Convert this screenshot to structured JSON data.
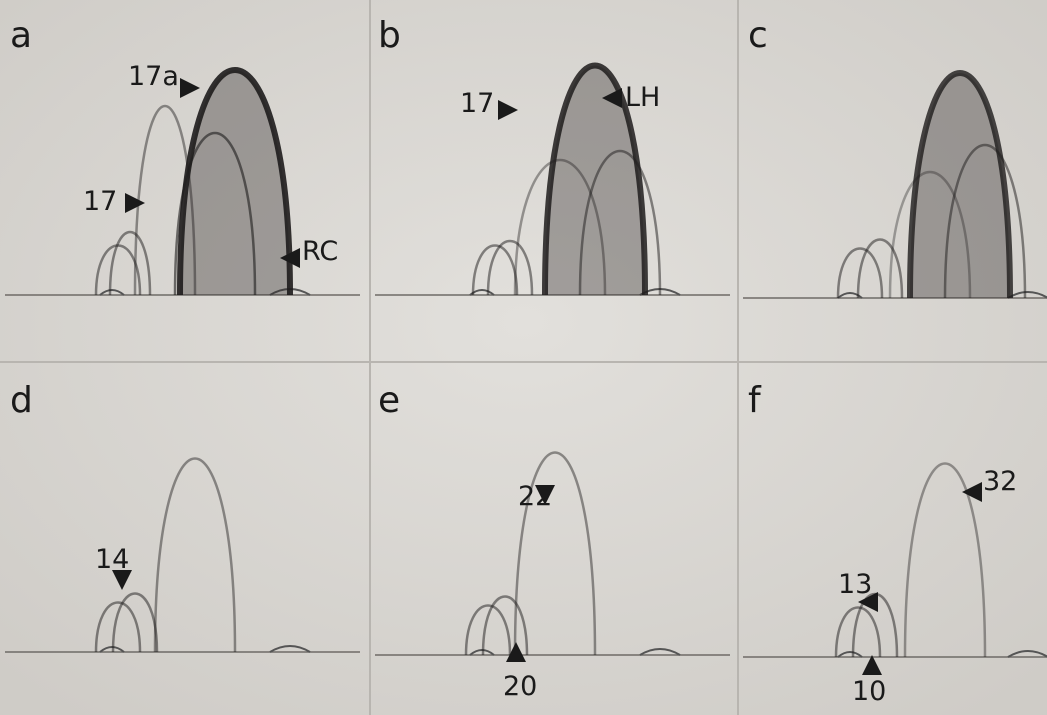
{
  "panels": [
    {
      "label": "a",
      "annotations": [
        "17a",
        "17",
        "RC"
      ]
    },
    {
      "label": "b",
      "annotations": [
        "17",
        "LH"
      ]
    },
    {
      "label": "c",
      "annotations": []
    },
    {
      "label": "d",
      "annotations": [
        "14"
      ]
    },
    {
      "label": "e",
      "annotations": [
        "22",
        "20"
      ]
    },
    {
      "label": "f",
      "annotations": [
        "13",
        "32",
        "10"
      ]
    }
  ]
}
